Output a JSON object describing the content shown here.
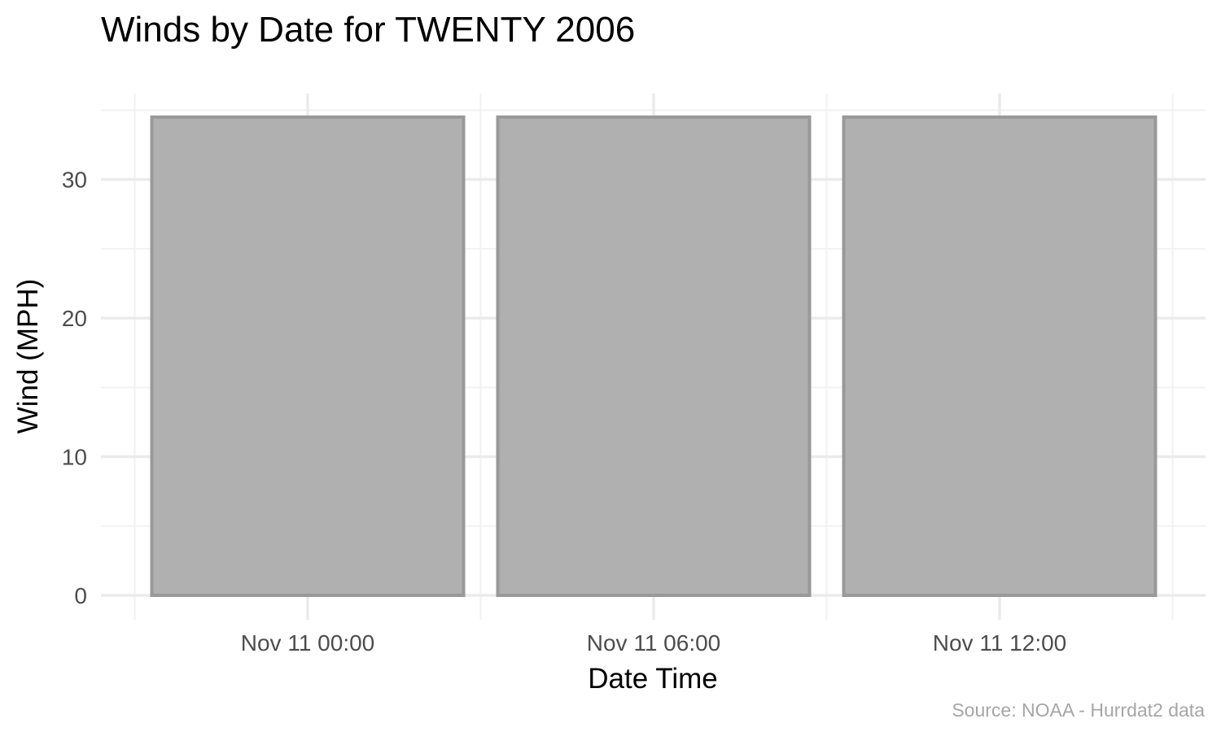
{
  "chart_data": {
    "type": "bar",
    "title": "Winds by Date for TWENTY 2006",
    "xlabel": "Date Time",
    "ylabel": "Wind (MPH)",
    "caption": "Source: NOAA - Hurrdat2 data",
    "categories": [
      "Nov 11 00:00",
      "Nov 11 06:00",
      "Nov 11 12:00"
    ],
    "values": [
      34.5,
      34.5,
      34.5
    ],
    "ylim": [
      0,
      36.2
    ],
    "y_ticks": [
      0,
      10,
      20,
      30
    ],
    "y_tick_labels": [
      "0",
      "10",
      "20",
      "30"
    ],
    "grid": true,
    "legend": "none",
    "colors": {
      "bar_fill": "#b0b0b0",
      "bar_outline": "#999999",
      "grid_major": "#ebebeb",
      "grid_minor": "#f2f2f2"
    }
  }
}
